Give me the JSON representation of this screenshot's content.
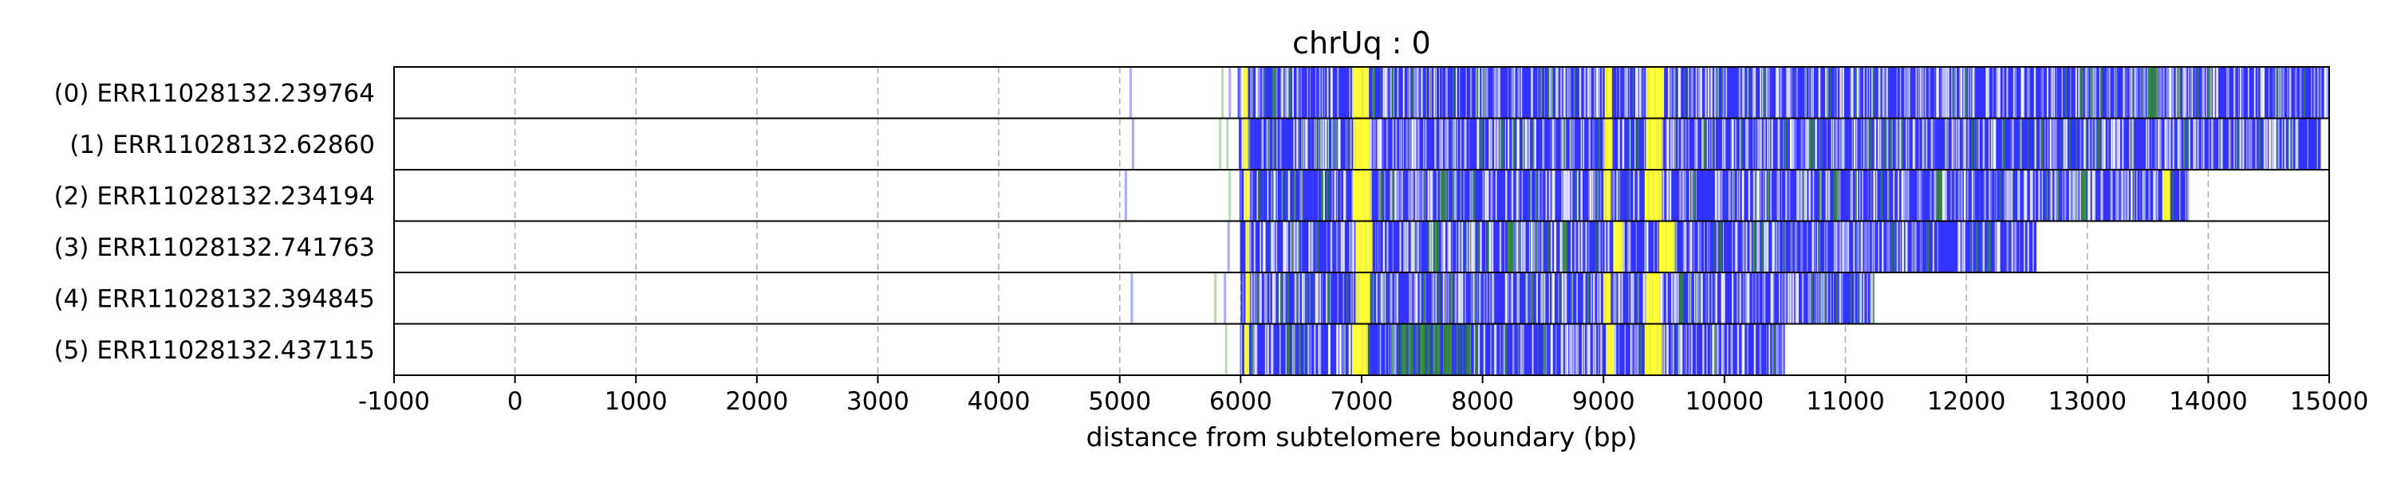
{
  "chart_data": {
    "type": "heatmap",
    "title": "chrUq : 0",
    "xlabel": "distance from subtelomere boundary (bp)",
    "xlim": [
      -1000,
      15000
    ],
    "xticks": [
      -1000,
      0,
      1000,
      2000,
      3000,
      4000,
      5000,
      6000,
      7000,
      8000,
      9000,
      10000,
      11000,
      12000,
      13000,
      14000,
      15000
    ],
    "grid": "vertical dashed",
    "colors": {
      "blue": "#3333ff",
      "yellow": "#ffff33",
      "green": "#2e8b2e",
      "white": "#ffffff",
      "grid": "#b0b0b0"
    },
    "reads": [
      {
        "label": "(0) ERR11028132.239764",
        "start": 5975,
        "end": 15000,
        "yellow": [
          [
            6020,
            6060
          ],
          [
            6930,
            7060
          ],
          [
            9010,
            9070
          ],
          [
            9350,
            9500
          ]
        ],
        "green": [
          [
            13500,
            13580
          ],
          [
            14000,
            14020
          ]
        ],
        "sparse": [
          [
            5080,
            5100
          ],
          [
            5840,
            5860
          ],
          [
            5900,
            5920
          ]
        ]
      },
      {
        "label": "(1) ERR11028132.62860",
        "start": 5985,
        "end": 14930,
        "yellow": [
          [
            6020,
            6060
          ],
          [
            6930,
            7060
          ],
          [
            9010,
            9070
          ],
          [
            9350,
            9480
          ]
        ],
        "green": [
          [
            12300,
            12320
          ],
          [
            13800,
            13810
          ]
        ],
        "sparse": [
          [
            5100,
            5120
          ],
          [
            5820,
            5840
          ],
          [
            5880,
            5900
          ]
        ]
      },
      {
        "label": "(2) ERR11028132.234194",
        "start": 5990,
        "end": 13830,
        "yellow": [
          [
            6030,
            6070
          ],
          [
            6930,
            7070
          ],
          [
            9000,
            9060
          ],
          [
            9340,
            9480
          ],
          [
            13620,
            13680
          ]
        ],
        "green": [
          [
            7650,
            7700
          ],
          [
            10900,
            10940
          ],
          [
            11750,
            11800
          ],
          [
            12950,
            12990
          ]
        ],
        "sparse": [
          [
            5040,
            5060
          ],
          [
            5900,
            5920
          ]
        ]
      },
      {
        "label": "(3) ERR11028132.741763",
        "start": 5995,
        "end": 12580,
        "yellow": [
          [
            6040,
            6070
          ],
          [
            6950,
            7090
          ],
          [
            9080,
            9160
          ],
          [
            9460,
            9590
          ]
        ],
        "green": [
          [
            7600,
            7640
          ],
          [
            8200,
            8260
          ],
          [
            8660,
            8700
          ],
          [
            12180,
            12200
          ]
        ],
        "sparse": [
          [
            5890,
            5910
          ]
        ]
      },
      {
        "label": "(4) ERR11028132.394845",
        "start": 6000,
        "end": 11230,
        "yellow": [
          [
            6040,
            6070
          ],
          [
            6950,
            7070
          ],
          [
            9000,
            9060
          ],
          [
            9350,
            9470
          ]
        ],
        "green": [
          [
            8400,
            8420
          ],
          [
            9630,
            9660
          ]
        ],
        "sparse": [
          [
            5090,
            5110
          ],
          [
            5780,
            5800
          ],
          [
            5860,
            5880
          ]
        ]
      },
      {
        "label": "(5) ERR11028132.437115",
        "start": 5995,
        "end": 10500,
        "yellow": [
          [
            6030,
            6070
          ],
          [
            6920,
            7050
          ],
          [
            9020,
            9080
          ],
          [
            9340,
            9480
          ]
        ],
        "green": [
          [
            7300,
            7900
          ],
          [
            8500,
            8520
          ]
        ],
        "sparse": [
          [
            5870,
            5890
          ]
        ]
      }
    ]
  }
}
